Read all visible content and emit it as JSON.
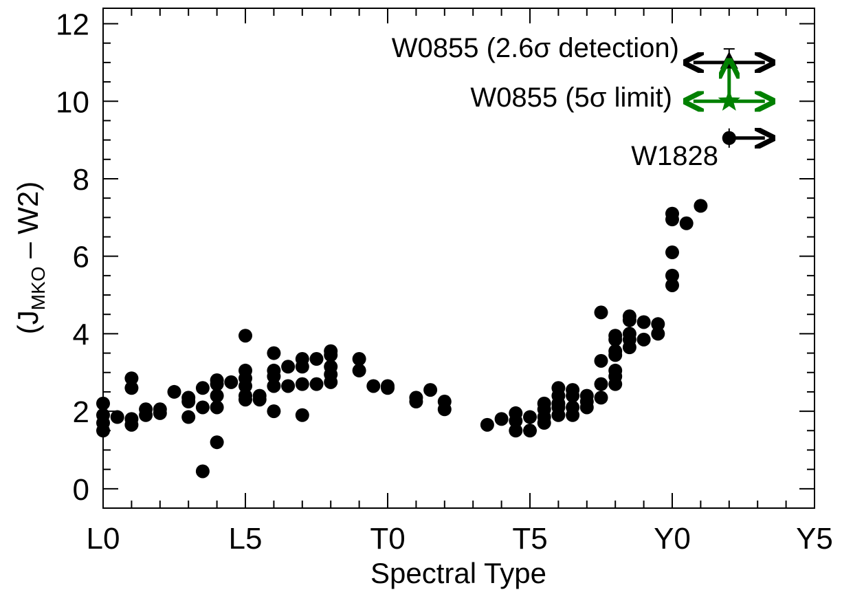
{
  "chart_data": {
    "type": "scatter",
    "xlabel": "Spectral Type",
    "ylabel_main": "(J",
    "ylabel_sub": "MKO",
    "ylabel_rest": " – W2)",
    "xlim": [
      0,
      25
    ],
    "ylim": [
      -0.5,
      12.4
    ],
    "x_ticks": [
      {
        "value": 0,
        "label": "L0"
      },
      {
        "value": 5,
        "label": "L5"
      },
      {
        "value": 10,
        "label": "T0"
      },
      {
        "value": 15,
        "label": "T5"
      },
      {
        "value": 20,
        "label": "Y0"
      },
      {
        "value": 25,
        "label": "Y5"
      }
    ],
    "y_ticks": [
      0,
      2,
      4,
      6,
      8,
      10,
      12
    ],
    "grid": false,
    "series": [
      {
        "marker": "circle",
        "color": "#000000",
        "points": [
          [
            0,
            2.2
          ],
          [
            0,
            1.9
          ],
          [
            0,
            1.7
          ],
          [
            0,
            1.5
          ],
          [
            0.5,
            1.85
          ],
          [
            1,
            1.8
          ],
          [
            1,
            1.65
          ],
          [
            1,
            2.6
          ],
          [
            1,
            2.85
          ],
          [
            1.5,
            2.05
          ],
          [
            1.5,
            1.9
          ],
          [
            2,
            2.05
          ],
          [
            2,
            1.95
          ],
          [
            2.5,
            2.5
          ],
          [
            3,
            2.35
          ],
          [
            3,
            2.25
          ],
          [
            3,
            1.85
          ],
          [
            3.5,
            2.6
          ],
          [
            3.5,
            2.1
          ],
          [
            3.5,
            0.45
          ],
          [
            4,
            2.8
          ],
          [
            4,
            2.7
          ],
          [
            4,
            2.4
          ],
          [
            4,
            2.1
          ],
          [
            4,
            1.2
          ],
          [
            4.5,
            2.75
          ],
          [
            5,
            3.95
          ],
          [
            5,
            3.05
          ],
          [
            5,
            2.85
          ],
          [
            5,
            2.65
          ],
          [
            5,
            2.4
          ],
          [
            5,
            2.3
          ],
          [
            5.5,
            2.4
          ],
          [
            5.5,
            2.3
          ],
          [
            6,
            3.5
          ],
          [
            6,
            3.05
          ],
          [
            6,
            2.9
          ],
          [
            6,
            2.65
          ],
          [
            6,
            2.0
          ],
          [
            6.5,
            3.15
          ],
          [
            6.5,
            2.65
          ],
          [
            7,
            3.35
          ],
          [
            7,
            3.15
          ],
          [
            7,
            2.7
          ],
          [
            7,
            1.9
          ],
          [
            7.5,
            3.35
          ],
          [
            7.5,
            2.7
          ],
          [
            8,
            3.55
          ],
          [
            8,
            3.45
          ],
          [
            8,
            3.15
          ],
          [
            8,
            2.95
          ],
          [
            8,
            2.75
          ],
          [
            9,
            3.35
          ],
          [
            9,
            3.05
          ],
          [
            9.5,
            2.65
          ],
          [
            10,
            2.65
          ],
          [
            10,
            2.6
          ],
          [
            11,
            2.35
          ],
          [
            11,
            2.25
          ],
          [
            11.5,
            2.55
          ],
          [
            12,
            2.25
          ],
          [
            12,
            2.05
          ],
          [
            13.5,
            1.65
          ],
          [
            14,
            1.8
          ],
          [
            14.5,
            1.95
          ],
          [
            14.5,
            1.75
          ],
          [
            14.5,
            1.5
          ],
          [
            15,
            1.85
          ],
          [
            15,
            1.5
          ],
          [
            15.5,
            2.2
          ],
          [
            15.5,
            2.05
          ],
          [
            15.5,
            1.85
          ],
          [
            15.5,
            1.7
          ],
          [
            16,
            2.6
          ],
          [
            16,
            2.4
          ],
          [
            16,
            2.2
          ],
          [
            16,
            2.1
          ],
          [
            16,
            1.9
          ],
          [
            16.5,
            2.55
          ],
          [
            16.5,
            2.4
          ],
          [
            16.5,
            2.1
          ],
          [
            16.5,
            1.9
          ],
          [
            17,
            2.4
          ],
          [
            17,
            2.25
          ],
          [
            17,
            2.1
          ],
          [
            17.5,
            4.55
          ],
          [
            17.5,
            3.3
          ],
          [
            17.5,
            2.7
          ],
          [
            17.5,
            2.35
          ],
          [
            18,
            3.95
          ],
          [
            18,
            3.85
          ],
          [
            18,
            3.55
          ],
          [
            18,
            3.45
          ],
          [
            18,
            3.05
          ],
          [
            18,
            2.9
          ],
          [
            18,
            2.7
          ],
          [
            18.5,
            4.45
          ],
          [
            18.5,
            4.35
          ],
          [
            18.5,
            4.0
          ],
          [
            18.5,
            3.85
          ],
          [
            18.5,
            3.65
          ],
          [
            19,
            4.3
          ],
          [
            19,
            3.85
          ],
          [
            19.5,
            4.25
          ],
          [
            19.5,
            4.0
          ],
          [
            20,
            7.1
          ],
          [
            20,
            6.95
          ],
          [
            20,
            6.1
          ],
          [
            20,
            5.5
          ],
          [
            20,
            5.25
          ],
          [
            20.5,
            6.85
          ],
          [
            21,
            7.3
          ],
          [
            22,
            9.05
          ]
        ]
      }
    ],
    "annotations": [
      {
        "text": "W0855 (2.6σ detection)",
        "x": 22,
        "y": 11.0,
        "marker": "triangle",
        "color": "#000000"
      },
      {
        "text": "W0855 (5σ limit)",
        "x": 22,
        "y": 10.0,
        "marker": "star",
        "color": "#008000"
      },
      {
        "text": "W1828",
        "x": 22,
        "y": 9.05,
        "marker": "circle",
        "color": "#000000"
      }
    ]
  }
}
